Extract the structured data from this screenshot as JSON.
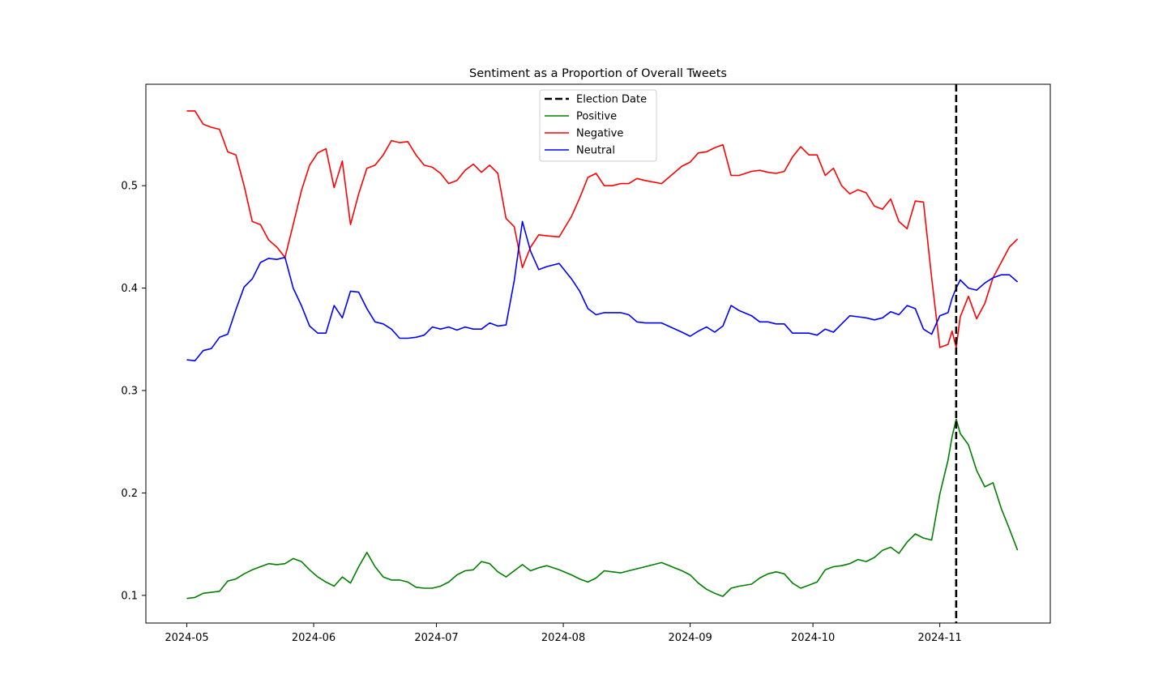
{
  "chart_data": {
    "type": "line",
    "title": "Sentiment as a Proportion of Overall Tweets",
    "xlabel": "",
    "ylabel": "",
    "xlim": [
      "2024-04-21",
      "2024-11-28"
    ],
    "ylim": [
      0.073,
      0.599
    ],
    "xticks": [
      "2024-05",
      "2024-06",
      "2024-07",
      "2024-08",
      "2024-09",
      "2024-10",
      "2024-11"
    ],
    "yticks": [
      "0.1",
      "0.2",
      "0.3",
      "0.4",
      "0.5"
    ],
    "grid": false,
    "legend_position": "top-center",
    "vline": {
      "label": "Election Date",
      "date": "2024-11-05",
      "color": "#000000",
      "style": "dashed"
    },
    "x": [
      "2024-05-01",
      "2024-05-03",
      "2024-05-05",
      "2024-05-07",
      "2024-05-09",
      "2024-05-11",
      "2024-05-13",
      "2024-05-15",
      "2024-05-17",
      "2024-05-19",
      "2024-05-21",
      "2024-05-23",
      "2024-05-25",
      "2024-05-27",
      "2024-05-29",
      "2024-05-31",
      "2024-06-02",
      "2024-06-04",
      "2024-06-06",
      "2024-06-08",
      "2024-06-10",
      "2024-06-12",
      "2024-06-14",
      "2024-06-16",
      "2024-06-18",
      "2024-06-20",
      "2024-06-22",
      "2024-06-24",
      "2024-06-26",
      "2024-06-28",
      "2024-06-30",
      "2024-07-02",
      "2024-07-04",
      "2024-07-06",
      "2024-07-08",
      "2024-07-10",
      "2024-07-12",
      "2024-07-14",
      "2024-07-16",
      "2024-07-18",
      "2024-07-20",
      "2024-07-22",
      "2024-07-24",
      "2024-07-26",
      "2024-07-28",
      "2024-07-31",
      "2024-08-03",
      "2024-08-05",
      "2024-08-07",
      "2024-08-09",
      "2024-08-11",
      "2024-08-13",
      "2024-08-15",
      "2024-08-17",
      "2024-08-19",
      "2024-08-21",
      "2024-08-25",
      "2024-08-30",
      "2024-09-01",
      "2024-09-03",
      "2024-09-05",
      "2024-09-07",
      "2024-09-09",
      "2024-09-11",
      "2024-09-13",
      "2024-09-16",
      "2024-09-18",
      "2024-09-20",
      "2024-09-22",
      "2024-09-24",
      "2024-09-26",
      "2024-09-28",
      "2024-09-30",
      "2024-10-02",
      "2024-10-04",
      "2024-10-06",
      "2024-10-08",
      "2024-10-10",
      "2024-10-12",
      "2024-10-14",
      "2024-10-16",
      "2024-10-18",
      "2024-10-20",
      "2024-10-22",
      "2024-10-24",
      "2024-10-26",
      "2024-10-28",
      "2024-10-30",
      "2024-11-01",
      "2024-11-03",
      "2024-11-04",
      "2024-11-05",
      "2024-11-06",
      "2024-11-08",
      "2024-11-10",
      "2024-11-12",
      "2024-11-14",
      "2024-11-16",
      "2024-11-18",
      "2024-11-20"
    ],
    "series": [
      {
        "name": "Positive",
        "color": "#008000",
        "values": [
          0.097,
          0.098,
          0.102,
          0.103,
          0.104,
          0.114,
          0.116,
          0.121,
          0.125,
          0.128,
          0.131,
          0.13,
          0.131,
          0.136,
          0.133,
          0.125,
          0.118,
          0.113,
          0.109,
          0.118,
          0.112,
          0.128,
          0.142,
          0.128,
          0.118,
          0.115,
          0.115,
          0.113,
          0.108,
          0.107,
          0.107,
          0.109,
          0.113,
          0.12,
          0.124,
          0.125,
          0.133,
          0.131,
          0.123,
          0.118,
          0.124,
          0.13,
          0.124,
          0.127,
          0.129,
          0.125,
          0.12,
          0.116,
          0.113,
          0.117,
          0.124,
          0.123,
          0.122,
          0.124,
          0.126,
          0.128,
          0.132,
          0.124,
          0.12,
          0.112,
          0.106,
          0.102,
          0.099,
          0.107,
          0.109,
          0.111,
          0.117,
          0.121,
          0.123,
          0.121,
          0.112,
          0.107,
          0.11,
          0.113,
          0.125,
          0.128,
          0.129,
          0.131,
          0.135,
          0.133,
          0.137,
          0.144,
          0.147,
          0.141,
          0.152,
          0.16,
          0.156,
          0.154,
          0.199,
          0.232,
          0.255,
          0.272,
          0.258,
          0.247,
          0.222,
          0.206,
          0.21,
          0.185,
          0.165,
          0.144
        ]
      },
      {
        "name": "Negative",
        "color": "#ff0000",
        "values": [
          0.573,
          0.573,
          0.56,
          0.557,
          0.555,
          0.533,
          0.53,
          0.5,
          0.465,
          0.462,
          0.447,
          0.44,
          0.43,
          0.462,
          0.495,
          0.52,
          0.532,
          0.536,
          0.498,
          0.524,
          0.462,
          0.492,
          0.517,
          0.52,
          0.53,
          0.544,
          0.542,
          0.543,
          0.53,
          0.52,
          0.518,
          0.512,
          0.502,
          0.505,
          0.515,
          0.521,
          0.513,
          0.52,
          0.512,
          0.468,
          0.46,
          0.42,
          0.44,
          0.452,
          0.451,
          0.45,
          0.47,
          0.488,
          0.508,
          0.512,
          0.5,
          0.5,
          0.502,
          0.502,
          0.507,
          0.505,
          0.502,
          0.519,
          0.523,
          0.532,
          0.533,
          0.537,
          0.54,
          0.51,
          0.51,
          0.514,
          0.515,
          0.513,
          0.512,
          0.514,
          0.528,
          0.538,
          0.53,
          0.53,
          0.51,
          0.517,
          0.5,
          0.492,
          0.496,
          0.493,
          0.48,
          0.477,
          0.487,
          0.465,
          0.458,
          0.485,
          0.484,
          0.41,
          0.342,
          0.345,
          0.358,
          0.342,
          0.372,
          0.392,
          0.37,
          0.385,
          0.41,
          0.425,
          0.44,
          0.448
        ]
      },
      {
        "name": "Neutral",
        "color": "#0000ff",
        "values": [
          0.33,
          0.329,
          0.339,
          0.341,
          0.352,
          0.355,
          0.379,
          0.401,
          0.409,
          0.425,
          0.429,
          0.428,
          0.43,
          0.4,
          0.383,
          0.363,
          0.356,
          0.356,
          0.383,
          0.371,
          0.397,
          0.396,
          0.38,
          0.367,
          0.365,
          0.36,
          0.351,
          0.351,
          0.352,
          0.354,
          0.362,
          0.36,
          0.362,
          0.359,
          0.362,
          0.36,
          0.36,
          0.366,
          0.363,
          0.364,
          0.407,
          0.465,
          0.436,
          0.418,
          0.421,
          0.424,
          0.409,
          0.397,
          0.38,
          0.374,
          0.376,
          0.376,
          0.376,
          0.374,
          0.367,
          0.366,
          0.366,
          0.357,
          0.353,
          0.358,
          0.362,
          0.357,
          0.363,
          0.383,
          0.378,
          0.373,
          0.367,
          0.367,
          0.365,
          0.365,
          0.356,
          0.356,
          0.356,
          0.354,
          0.36,
          0.357,
          0.365,
          0.373,
          0.372,
          0.371,
          0.369,
          0.371,
          0.377,
          0.374,
          0.383,
          0.38,
          0.36,
          0.355,
          0.373,
          0.376,
          0.39,
          0.4,
          0.408,
          0.4,
          0.398,
          0.405,
          0.41,
          0.413,
          0.413,
          0.406
        ]
      }
    ]
  }
}
